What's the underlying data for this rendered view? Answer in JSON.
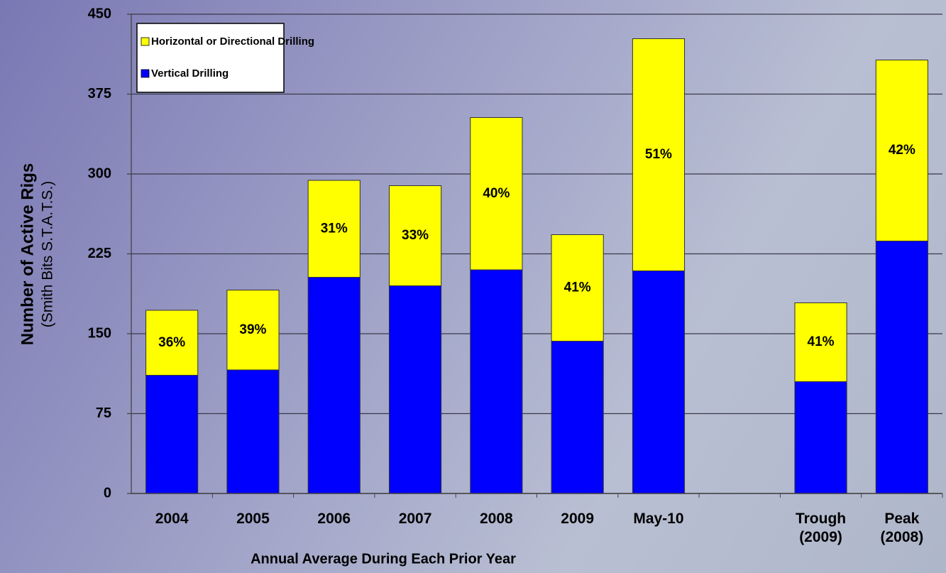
{
  "chart_data": {
    "type": "stacked_bar",
    "y_label": "Number of Active Rigs",
    "y_sublabel": "(Smith Bits S.T.A.T.S.)",
    "x_label": "Annual Average During Each Prior Year",
    "categories": [
      "2004",
      "2005",
      "2006",
      "2007",
      "2008",
      "2009",
      "May-10",
      null,
      "Trough (2009)",
      "Peak (2008)"
    ],
    "series": [
      {
        "name": "Vertical Drilling",
        "color": "#0000ff",
        "values": [
          111,
          116,
          203,
          195,
          210,
          143,
          209,
          null,
          105,
          237
        ]
      },
      {
        "name": "Horizontal or Directional Drilling",
        "color": "#ffff00",
        "values": [
          61,
          75,
          91,
          94,
          143,
          100,
          218,
          null,
          74,
          170
        ]
      }
    ],
    "horizontal_share_labels": [
      "36%",
      "39%",
      "31%",
      "33%",
      "40%",
      "41%",
      "51%",
      null,
      "41%",
      "42%"
    ],
    "ylim": [
      0,
      450
    ],
    "yticks": [
      0,
      75,
      150,
      225,
      300,
      375,
      450
    ],
    "grid": true
  }
}
